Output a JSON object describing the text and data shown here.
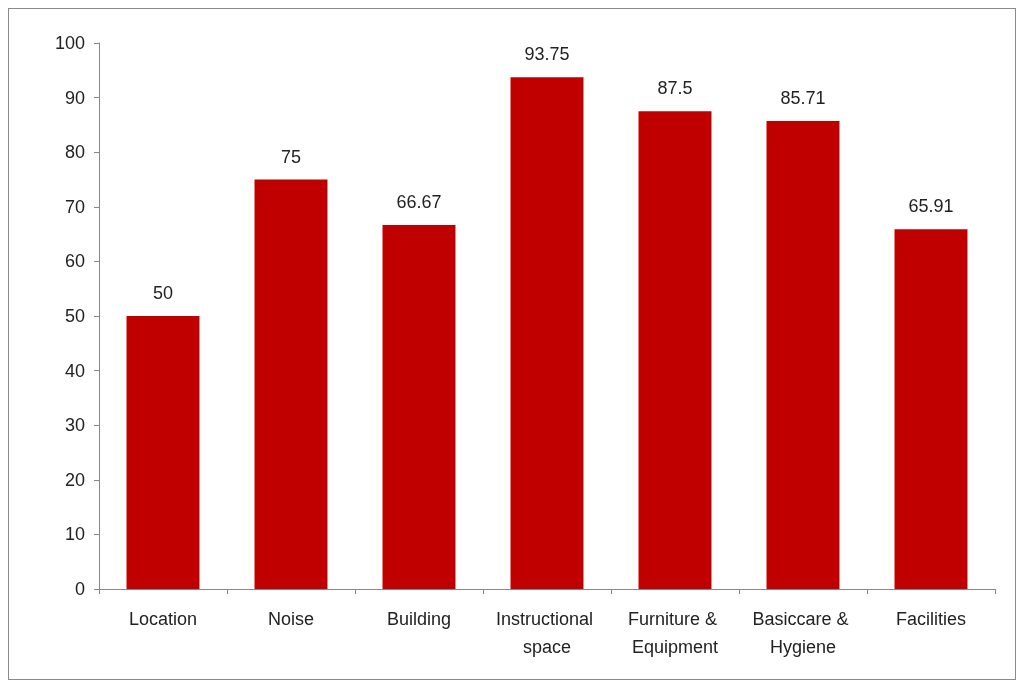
{
  "chart_data": {
    "type": "bar",
    "categories": [
      "Location",
      "Noise",
      "Building",
      "Instructional space",
      "Furniture & Equipment",
      "Basiccare & Hygiene",
      "Facilities"
    ],
    "values": [
      50,
      75,
      66.67,
      93.75,
      87.5,
      85.71,
      65.91
    ],
    "color": "#c00000",
    "ylim": [
      0,
      100
    ],
    "yticks": [
      0,
      10,
      20,
      30,
      40,
      50,
      60,
      70,
      80,
      90,
      100
    ],
    "grid": false,
    "data_labels": true
  }
}
